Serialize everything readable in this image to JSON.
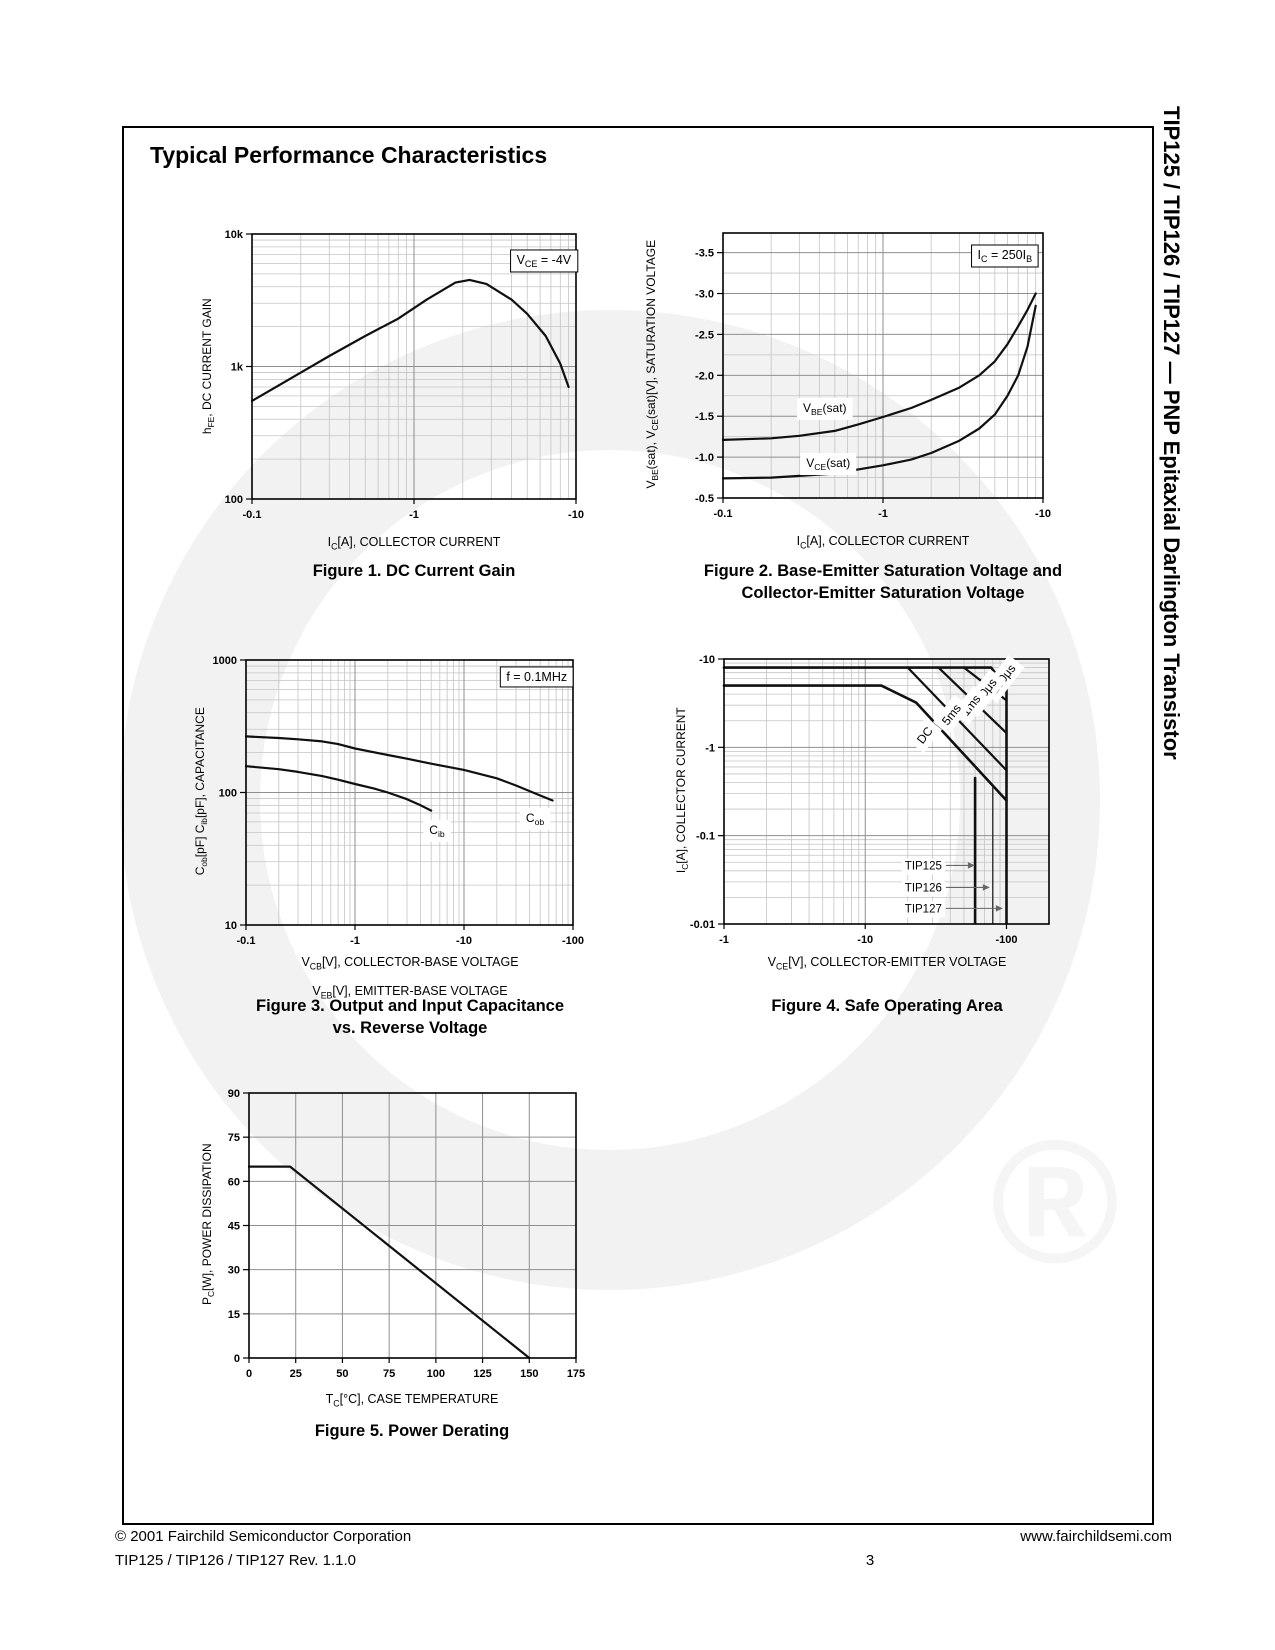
{
  "page": {
    "title": "Typical Performance Characteristics"
  },
  "sidebar": {
    "title": "TIP125 / TIP126 / TIP127 — PNP Epitaxial Darlington Transistor"
  },
  "footer": {
    "copyright": "© 2001 Fairchild Semiconductor Corporation",
    "website": "www.fairchildsemi.com",
    "revision": "TIP125 / TIP126 / TIP127 Rev. 1.1.0",
    "page_number": "3"
  },
  "watermark": {
    "registered_symbol": "®",
    "swoosh_color": "#f2f2f2",
    "symbol_color": "#f5f5f5"
  },
  "figures": [
    {
      "caption_lines": [
        "Figure 1. DC Current Gain"
      ]
    },
    {
      "caption_lines": [
        "Figure 2. Base-Emitter Saturation Voltage and",
        "Collector-Emitter Saturation Voltage"
      ]
    },
    {
      "caption_lines": [
        "Figure 3. Output and Input Capacitance",
        "vs. Reverse Voltage"
      ]
    },
    {
      "caption_lines": [
        "Figure 4. Safe Operating Area"
      ]
    },
    {
      "caption_lines": [
        "Figure 5. Power Derating"
      ]
    }
  ],
  "chart_data": [
    {
      "type": "line",
      "title": "Figure 1. DC Current Gain",
      "xlabel": "I~C~[A], COLLECTOR CURRENT",
      "ylabel": "h~FE~, DC CURRENT GAIN",
      "xscale": "log",
      "yscale": "log",
      "xlim": [
        -0.1,
        -10
      ],
      "ylim": [
        100,
        10000
      ],
      "xticks": [
        {
          "v": -0.1,
          "label": "-0.1"
        },
        {
          "v": -1,
          "label": "-1"
        },
        {
          "v": -10,
          "label": "-10"
        }
      ],
      "yticks": [
        {
          "v": 100,
          "label": "100"
        },
        {
          "v": 1000,
          "label": "1k"
        },
        {
          "v": 10000,
          "label": "10k"
        }
      ],
      "series": [
        {
          "name": "hFE vs IC, VCE = -4V",
          "points": [
            [
              -0.1,
              550
            ],
            [
              -0.2,
              900
            ],
            [
              -0.3,
              1200
            ],
            [
              -0.5,
              1700
            ],
            [
              -0.8,
              2300
            ],
            [
              -1.2,
              3200
            ],
            [
              -1.8,
              4300
            ],
            [
              -2.2,
              4500
            ],
            [
              -2.8,
              4200
            ],
            [
              -4,
              3200
            ],
            [
              -5,
              2500
            ],
            [
              -6.5,
              1700
            ],
            [
              -8,
              1050
            ],
            [
              -9,
              700
            ]
          ]
        }
      ],
      "annotations": [
        {
          "text": "V~CE~ = -4V",
          "fx": 0.985,
          "fy": 0.098,
          "anchor": "end",
          "box": true
        }
      ]
    },
    {
      "type": "line",
      "title": "Figure 2. Base-Emitter Saturation Voltage and Collector-Emitter Saturation Voltage",
      "xlabel": "I~C~[A], COLLECTOR CURRENT",
      "ylabel": "V~BE~(sat),  V~CE~(sat)[V], SATURATION VOLTAGE",
      "xscale": "log",
      "yscale": "linear",
      "xlim": [
        -0.1,
        -10
      ],
      "ylim": [
        -0.5,
        -3.74
      ],
      "yminor_step": 0.25,
      "xticks": [
        {
          "v": -0.1,
          "label": "-0.1"
        },
        {
          "v": -1,
          "label": "-1"
        },
        {
          "v": -10,
          "label": "-10"
        }
      ],
      "yticks": [
        {
          "v": -0.5,
          "label": "-0.5"
        },
        {
          "v": -1,
          "label": "-1.0"
        },
        {
          "v": -1.5,
          "label": "-1.5"
        },
        {
          "v": -2,
          "label": "-2.0"
        },
        {
          "v": -2.5,
          "label": "-2.5"
        },
        {
          "v": -3,
          "label": "-3.0"
        },
        {
          "v": -3.5,
          "label": "-3.5"
        }
      ],
      "series": [
        {
          "name": "VBE(sat)",
          "points": [
            [
              -0.1,
              -1.21
            ],
            [
              -0.2,
              -1.23
            ],
            [
              -0.3,
              -1.26
            ],
            [
              -0.5,
              -1.32
            ],
            [
              -0.7,
              -1.4
            ],
            [
              -1,
              -1.49
            ],
            [
              -1.5,
              -1.6
            ],
            [
              -2,
              -1.7
            ],
            [
              -3,
              -1.85
            ],
            [
              -4,
              -2.0
            ],
            [
              -5,
              -2.17
            ],
            [
              -6,
              -2.38
            ],
            [
              -7,
              -2.6
            ],
            [
              -8,
              -2.8
            ],
            [
              -9,
              -3.0
            ]
          ]
        },
        {
          "name": "VCE(sat)",
          "points": [
            [
              -0.1,
              -0.74
            ],
            [
              -0.2,
              -0.75
            ],
            [
              -0.3,
              -0.77
            ],
            [
              -0.5,
              -0.8
            ],
            [
              -0.7,
              -0.85
            ],
            [
              -1,
              -0.9
            ],
            [
              -1.5,
              -0.97
            ],
            [
              -2,
              -1.05
            ],
            [
              -3,
              -1.2
            ],
            [
              -4,
              -1.35
            ],
            [
              -5,
              -1.52
            ],
            [
              -6,
              -1.75
            ],
            [
              -7,
              -2.0
            ],
            [
              -8,
              -2.35
            ],
            [
              -9,
              -2.85
            ]
          ]
        }
      ],
      "annotations": [
        {
          "text": "I~C~ = 250I~B~",
          "fx": 0.966,
          "fy": 0.083,
          "anchor": "end",
          "box": true
        },
        {
          "text": "V~BE~(sat)",
          "fx": 0.25,
          "fy": 0.66,
          "anchor": "start",
          "bg": true
        },
        {
          "text": "V~CE~(sat)",
          "fx": 0.26,
          "fy": 0.868,
          "anchor": "start",
          "bg": true
        }
      ]
    },
    {
      "type": "line",
      "title": "Figure 3. Output and Input Capacitance vs. Reverse Voltage",
      "xlabel": "V~CB~[V], COLLECTOR-BASE VOLTAGE",
      "xlabel2": "V~EB~[V], EMITTER-BASE VOLTAGE",
      "ylabel": "C~ob~[pF] C~ib~[pF], CAPACITANCE",
      "xscale": "log",
      "yscale": "log",
      "xlim": [
        -0.1,
        -100
      ],
      "ylim": [
        10,
        1000
      ],
      "xticks": [
        {
          "v": -0.1,
          "label": "-0.1"
        },
        {
          "v": -1,
          "label": "-1"
        },
        {
          "v": -10,
          "label": "-10"
        },
        {
          "v": -100,
          "label": "-100"
        }
      ],
      "yticks": [
        {
          "v": 10,
          "label": "10"
        },
        {
          "v": 100,
          "label": "100"
        },
        {
          "v": 1000,
          "label": "1000"
        }
      ],
      "series": [
        {
          "name": "Cob",
          "points": [
            [
              -0.1,
              265
            ],
            [
              -0.2,
              258
            ],
            [
              -0.3,
              252
            ],
            [
              -0.5,
              243
            ],
            [
              -0.7,
              232
            ],
            [
              -1,
              215
            ],
            [
              -2,
              192
            ],
            [
              -3,
              180
            ],
            [
              -5,
              165
            ],
            [
              -10,
              148
            ],
            [
              -20,
              128
            ],
            [
              -30,
              113
            ],
            [
              -50,
              95
            ],
            [
              -65,
              87
            ]
          ]
        },
        {
          "name": "Cib",
          "points": [
            [
              -0.1,
              158
            ],
            [
              -0.2,
              150
            ],
            [
              -0.3,
              143
            ],
            [
              -0.5,
              133
            ],
            [
              -0.7,
              125
            ],
            [
              -1,
              116
            ],
            [
              -1.5,
              107
            ],
            [
              -2,
              100
            ],
            [
              -3,
              89
            ],
            [
              -4,
              80
            ],
            [
              -5,
              73
            ]
          ]
        }
      ],
      "annotations": [
        {
          "text": "f = 0.1MHz",
          "fx": 0.982,
          "fy": 0.064,
          "anchor": "end",
          "box": true
        },
        {
          "text": "C~ib~",
          "fx": 0.584,
          "fy": 0.641,
          "anchor": "middle",
          "bg": true
        },
        {
          "text": "C~ob~",
          "fx": 0.884,
          "fy": 0.596,
          "anchor": "middle",
          "bg": true
        }
      ]
    },
    {
      "type": "line",
      "title": "Figure 4. Safe Operating Area",
      "xlabel": "V~CE~[V], COLLECTOR-EMITTER VOLTAGE",
      "ylabel": "I~C~[A], COLLECTOR CURRENT",
      "xscale": "log",
      "yscale": "log",
      "xlim": [
        -1,
        -200
      ],
      "ylim": [
        -0.01,
        -10
      ],
      "xticks": [
        {
          "v": -1,
          "label": "-1"
        },
        {
          "v": -10,
          "label": "-10"
        },
        {
          "v": -100,
          "label": "-100"
        }
      ],
      "yticks": [
        {
          "v": -0.01,
          "label": "-0.01"
        },
        {
          "v": -0.1,
          "label": "-0.1"
        },
        {
          "v": -1,
          "label": "-1"
        },
        {
          "v": -10,
          "label": "-10"
        }
      ],
      "series": [
        {
          "name": "100μs",
          "width": 2.6,
          "points": [
            [
              -1,
              -8
            ],
            [
              -78,
              -8
            ],
            [
              -100,
              -4.7
            ]
          ]
        },
        {
          "name": "500μs",
          "points": [
            [
              -50,
              -8
            ],
            [
              -100,
              -3.4
            ]
          ]
        },
        {
          "name": "1ms",
          "points": [
            [
              -33,
              -8
            ],
            [
              -100,
              -1.45
            ]
          ]
        },
        {
          "name": "5ms",
          "points": [
            [
              -20,
              -8
            ],
            [
              -100,
              -0.55
            ]
          ]
        },
        {
          "name": "DC",
          "width": 2.6,
          "points": [
            [
              -1,
              -5
            ],
            [
              -13,
              -5
            ],
            [
              -23,
              -3.2
            ],
            [
              -100,
              -0.25
            ]
          ]
        },
        {
          "name": "TIP125 voltage limit",
          "width": 2.6,
          "points": [
            [
              -60,
              -0.45
            ],
            [
              -60,
              -0.0102
            ]
          ]
        },
        {
          "name": "TIP126 voltage limit",
          "width": 1.2,
          "points": [
            [
              -80,
              -0.35
            ],
            [
              -80,
              -0.0102
            ]
          ]
        },
        {
          "name": "TIP127 voltage limit",
          "width": 2.6,
          "points": [
            [
              -100,
              -4.7
            ],
            [
              -100,
              -0.0102
            ]
          ]
        }
      ],
      "annotations": [
        {
          "text": "100μs",
          "fx": 0.858,
          "fy": 0.075,
          "anchor": "middle",
          "rotate": -52,
          "bg": true
        },
        {
          "text": "500μs",
          "fx": 0.8,
          "fy": 0.128,
          "anchor": "middle",
          "rotate": -52,
          "bg": true
        },
        {
          "text": "1ms",
          "fx": 0.76,
          "fy": 0.175,
          "anchor": "middle",
          "rotate": -52,
          "bg": true
        },
        {
          "text": "5ms",
          "fx": 0.7,
          "fy": 0.21,
          "anchor": "middle",
          "rotate": -52,
          "bg": true
        },
        {
          "text": "DC",
          "fx": 0.618,
          "fy": 0.288,
          "anchor": "middle",
          "rotate": -52,
          "bg": true
        },
        {
          "type": "leader",
          "text": "TIP125",
          "fy": 0.779,
          "text_end_fx": 0.695,
          "arrow_fx": 0.772
        },
        {
          "type": "leader",
          "text": "TIP126",
          "fy": 0.862,
          "text_end_fx": 0.695,
          "arrow_fx": 0.818
        },
        {
          "type": "leader",
          "text": "TIP127",
          "fy": 0.941,
          "text_end_fx": 0.695,
          "arrow_fx": 0.858
        }
      ]
    },
    {
      "type": "line",
      "title": "Figure 5. Power Derating",
      "xlabel": "T~C~[°C], CASE TEMPERATURE",
      "ylabel": "P~C~[W], POWER DISSIPATION",
      "xscale": "linear",
      "yscale": "linear",
      "xlim": [
        0,
        175
      ],
      "ylim": [
        0,
        90
      ],
      "xticks": [
        {
          "v": 0,
          "label": "0"
        },
        {
          "v": 25,
          "label": "25"
        },
        {
          "v": 50,
          "label": "50"
        },
        {
          "v": 75,
          "label": "75"
        },
        {
          "v": 100,
          "label": "100"
        },
        {
          "v": 125,
          "label": "125"
        },
        {
          "v": 150,
          "label": "150"
        },
        {
          "v": 175,
          "label": "175"
        }
      ],
      "yticks": [
        {
          "v": 0,
          "label": "0"
        },
        {
          "v": 15,
          "label": "15"
        },
        {
          "v": 30,
          "label": "30"
        },
        {
          "v": 45,
          "label": "45"
        },
        {
          "v": 60,
          "label": "60"
        },
        {
          "v": 75,
          "label": "75"
        },
        {
          "v": 90,
          "label": "90"
        }
      ],
      "series": [
        {
          "name": "PC max vs TC",
          "points": [
            [
              0,
              65
            ],
            [
              22,
              65
            ],
            [
              150,
              0
            ]
          ]
        }
      ],
      "annotations": []
    }
  ]
}
